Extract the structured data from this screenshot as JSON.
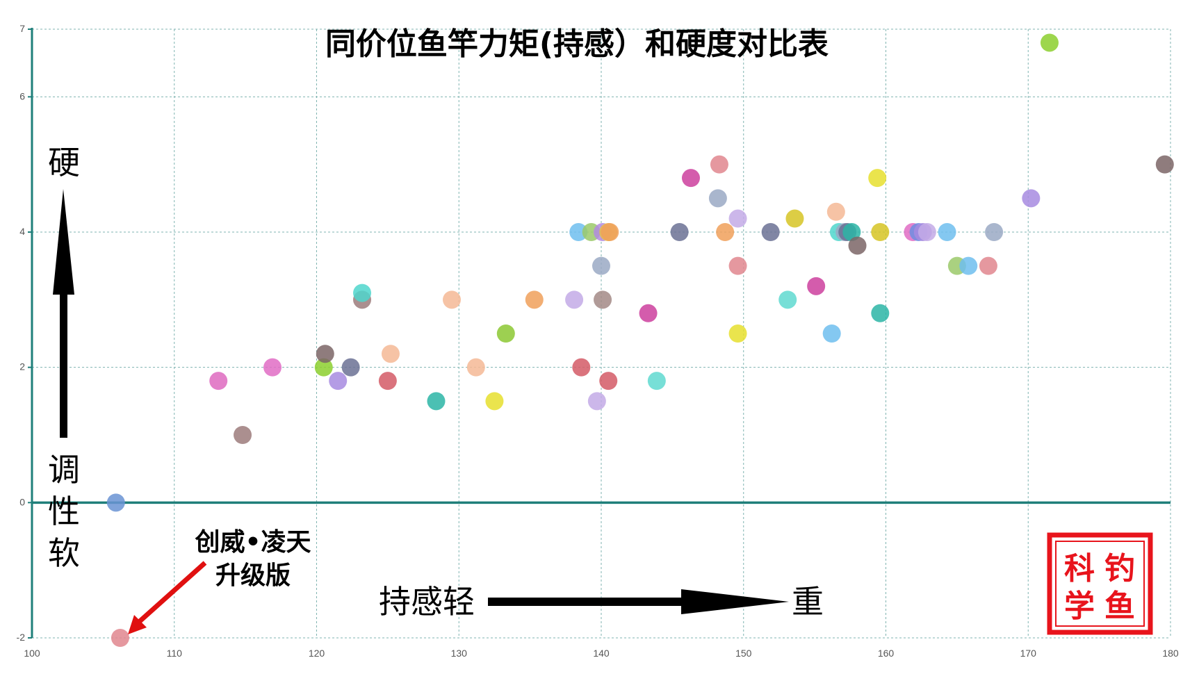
{
  "chart_data": {
    "type": "scatter",
    "title": "同价位鱼竿力矩(持感）和硬度对比表",
    "xlim": [
      100,
      180
    ],
    "ylim": [
      -2,
      7
    ],
    "x_ticks": [
      "100",
      "110",
      "120",
      "130",
      "140",
      "150",
      "160",
      "170",
      "180"
    ],
    "y_ticks": [
      "-2",
      "0",
      "2",
      "4",
      "6",
      "7"
    ],
    "grid": true,
    "y_axis_annotation": {
      "top": "硬",
      "bottom": [
        "调",
        "性",
        "软"
      ]
    },
    "x_axis_annotation": {
      "left": "持感轻",
      "right": "重"
    },
    "callout": {
      "line1": "创威•凌天",
      "line2": "升级版",
      "x": 106.2,
      "y": -2.0
    },
    "seal": {
      "chars": [
        "科",
        "钓",
        "学",
        "鱼"
      ]
    },
    "points": [
      {
        "x": 105.9,
        "y": 0.0,
        "color": "#6a93d4"
      },
      {
        "x": 106.2,
        "y": -2.0,
        "color": "#e0868e"
      },
      {
        "x": 113.1,
        "y": 1.8,
        "color": "#de6ac0"
      },
      {
        "x": 114.8,
        "y": 1.0,
        "color": "#9c7b7b"
      },
      {
        "x": 116.9,
        "y": 2.0,
        "color": "#e06cc4"
      },
      {
        "x": 120.5,
        "y": 2.0,
        "color": "#8ccf2e"
      },
      {
        "x": 120.6,
        "y": 2.2,
        "color": "#7b6566"
      },
      {
        "x": 121.5,
        "y": 1.8,
        "color": "#a78be0"
      },
      {
        "x": 122.4,
        "y": 2.0,
        "color": "#6b7194"
      },
      {
        "x": 123.2,
        "y": 3.0,
        "color": "#9c7b7b"
      },
      {
        "x": 123.2,
        "y": 3.1,
        "color": "#4fd6cc"
      },
      {
        "x": 125.0,
        "y": 1.8,
        "color": "#d45a66"
      },
      {
        "x": 125.2,
        "y": 2.2,
        "color": "#f5b995"
      },
      {
        "x": 128.4,
        "y": 1.5,
        "color": "#2cb5a6"
      },
      {
        "x": 129.5,
        "y": 3.0,
        "color": "#f5b995"
      },
      {
        "x": 131.2,
        "y": 2.0,
        "color": "#f5b995"
      },
      {
        "x": 132.5,
        "y": 1.5,
        "color": "#e6df2e"
      },
      {
        "x": 133.3,
        "y": 2.5,
        "color": "#8cc832"
      },
      {
        "x": 135.3,
        "y": 3.0,
        "color": "#f0a05a"
      },
      {
        "x": 138.1,
        "y": 3.0,
        "color": "#c3aae6"
      },
      {
        "x": 138.4,
        "y": 4.0,
        "color": "#6ebeee"
      },
      {
        "x": 138.6,
        "y": 2.0,
        "color": "#d45a66"
      },
      {
        "x": 139.3,
        "y": 4.0,
        "color": "#9bc96a"
      },
      {
        "x": 139.7,
        "y": 1.5,
        "color": "#c3aae6"
      },
      {
        "x": 140.0,
        "y": 3.5,
        "color": "#9aa9c4"
      },
      {
        "x": 140.1,
        "y": 3.0,
        "color": "#a38a86"
      },
      {
        "x": 140.1,
        "y": 4.0,
        "color": "#b38be0"
      },
      {
        "x": 140.5,
        "y": 4.0,
        "color": "#e6bf48"
      },
      {
        "x": 140.5,
        "y": 1.8,
        "color": "#d45a66"
      },
      {
        "x": 140.6,
        "y": 4.0,
        "color": "#f0a05a"
      },
      {
        "x": 143.3,
        "y": 2.8,
        "color": "#cc3f9e"
      },
      {
        "x": 143.9,
        "y": 1.8,
        "color": "#5fd9d0"
      },
      {
        "x": 145.5,
        "y": 4.0,
        "color": "#6b7194"
      },
      {
        "x": 146.3,
        "y": 4.8,
        "color": "#cc3f9e"
      },
      {
        "x": 148.2,
        "y": 4.5,
        "color": "#9aa9c4"
      },
      {
        "x": 148.3,
        "y": 5.0,
        "color": "#e0868e"
      },
      {
        "x": 148.7,
        "y": 4.0,
        "color": "#f0a05a"
      },
      {
        "x": 149.6,
        "y": 4.2,
        "color": "#c3aae6"
      },
      {
        "x": 149.6,
        "y": 3.5,
        "color": "#e0868e"
      },
      {
        "x": 149.6,
        "y": 2.5,
        "color": "#e6df2e"
      },
      {
        "x": 151.9,
        "y": 4.0,
        "color": "#6b7194"
      },
      {
        "x": 153.1,
        "y": 3.0,
        "color": "#5fd9d0"
      },
      {
        "x": 153.6,
        "y": 4.2,
        "color": "#d6c424"
      },
      {
        "x": 155.1,
        "y": 3.2,
        "color": "#cc3f9e"
      },
      {
        "x": 156.2,
        "y": 2.5,
        "color": "#6ebeee"
      },
      {
        "x": 156.5,
        "y": 4.3,
        "color": "#f5b995"
      },
      {
        "x": 156.7,
        "y": 4.0,
        "color": "#4fd6cc"
      },
      {
        "x": 157.1,
        "y": 4.0,
        "color": "#9aa9c4"
      },
      {
        "x": 157.3,
        "y": 4.0,
        "color": "#6b7194"
      },
      {
        "x": 157.6,
        "y": 4.0,
        "color": "#2cb5a6"
      },
      {
        "x": 158.0,
        "y": 3.8,
        "color": "#7b6566"
      },
      {
        "x": 159.4,
        "y": 4.8,
        "color": "#e6df2e"
      },
      {
        "x": 159.6,
        "y": 2.8,
        "color": "#2cb5a6"
      },
      {
        "x": 159.6,
        "y": 4.0,
        "color": "#d6c424"
      },
      {
        "x": 161.9,
        "y": 4.0,
        "color": "#e06cc4"
      },
      {
        "x": 162.3,
        "y": 4.0,
        "color": "#6f8ee0"
      },
      {
        "x": 162.6,
        "y": 4.0,
        "color": "#a78be0"
      },
      {
        "x": 162.9,
        "y": 4.0,
        "color": "#c3aae6"
      },
      {
        "x": 164.3,
        "y": 4.0,
        "color": "#6ebeee"
      },
      {
        "x": 165.0,
        "y": 3.5,
        "color": "#9bc96a"
      },
      {
        "x": 165.8,
        "y": 3.5,
        "color": "#6ebeee"
      },
      {
        "x": 167.2,
        "y": 3.5,
        "color": "#e0868e"
      },
      {
        "x": 167.6,
        "y": 4.0,
        "color": "#9aa9c4"
      },
      {
        "x": 170.2,
        "y": 4.5,
        "color": "#a78be0"
      },
      {
        "x": 171.5,
        "y": 6.8,
        "color": "#8ccf2e"
      },
      {
        "x": 179.6,
        "y": 5.0,
        "color": "#7b6566"
      }
    ]
  }
}
